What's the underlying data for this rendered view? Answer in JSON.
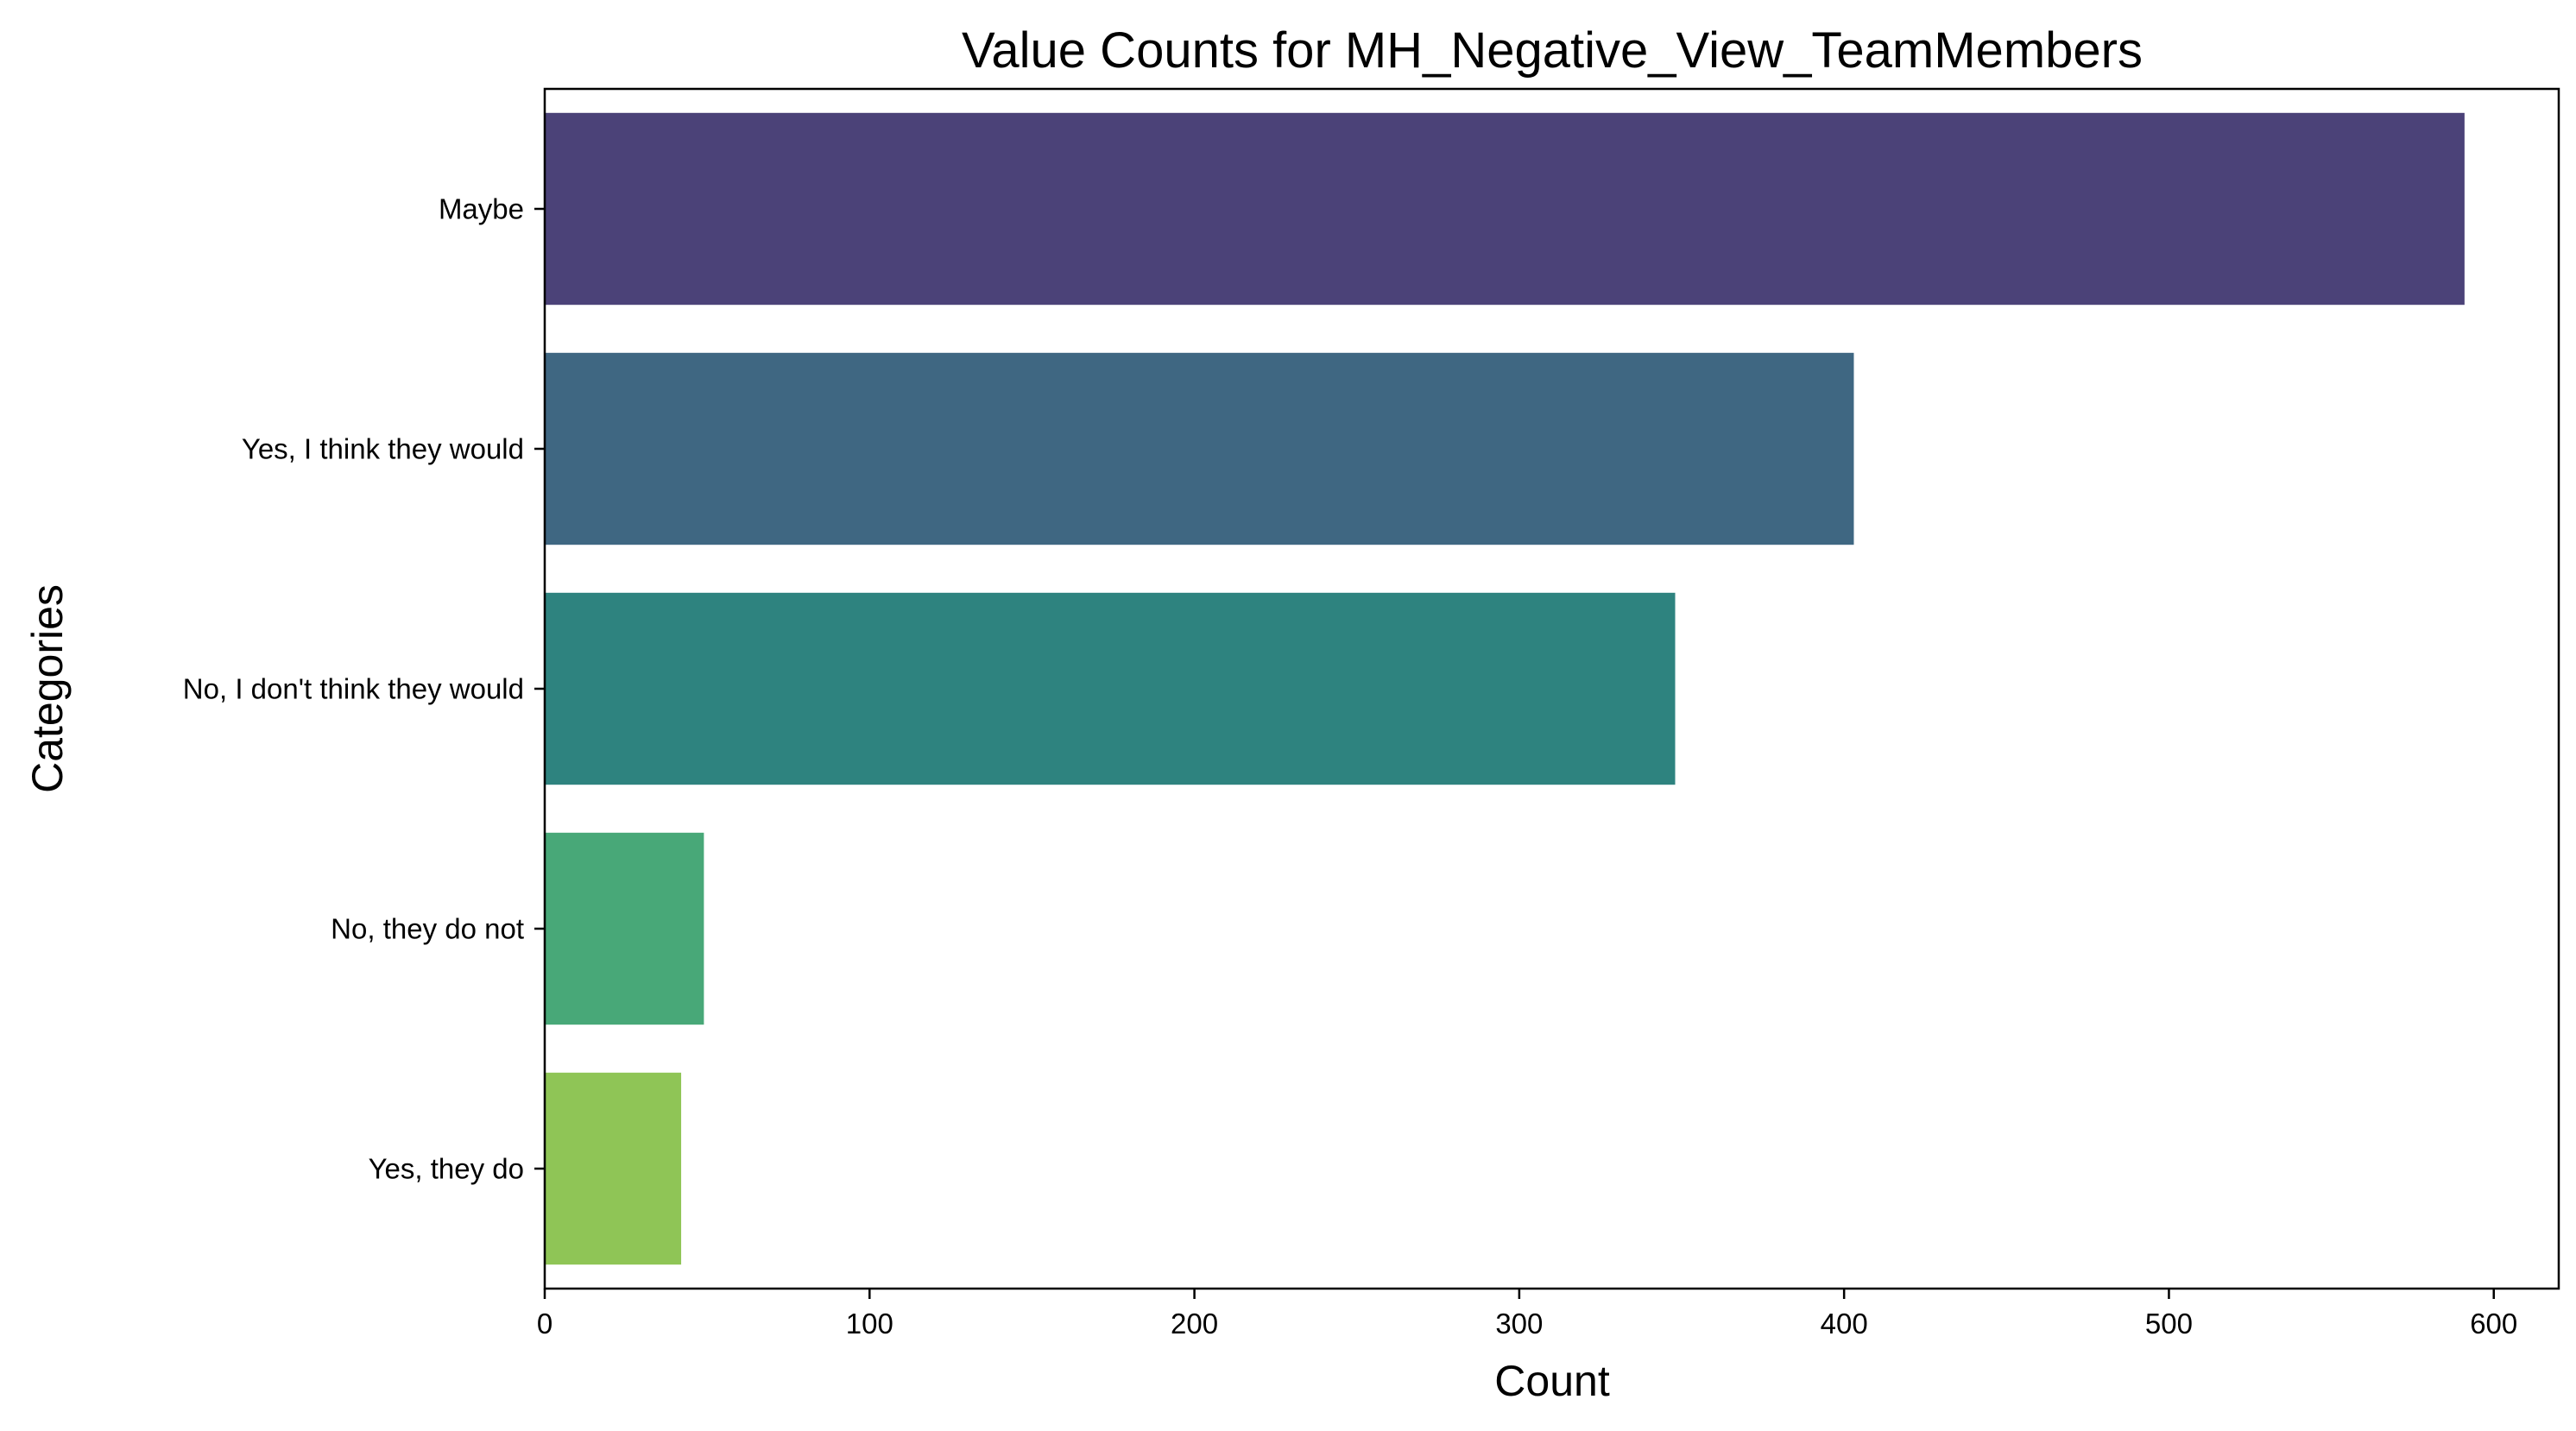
{
  "chart_data": {
    "type": "bar",
    "orientation": "horizontal",
    "title": "Value Counts for MH_Negative_View_TeamMembers",
    "xlabel": "Count",
    "ylabel": "Categories",
    "categories": [
      "Maybe",
      "Yes, I think they would",
      "No, I don't think they would",
      "No, they do not",
      "Yes, they do"
    ],
    "values": [
      591,
      403,
      348,
      49,
      42
    ],
    "colors": [
      "#4b4278",
      "#3f6782",
      "#2e837f",
      "#48a878",
      "#8fc556"
    ],
    "xlim": [
      0,
      620
    ],
    "xticks": [
      0,
      100,
      200,
      300,
      400,
      500,
      600
    ],
    "grid": false,
    "legend": "none"
  }
}
